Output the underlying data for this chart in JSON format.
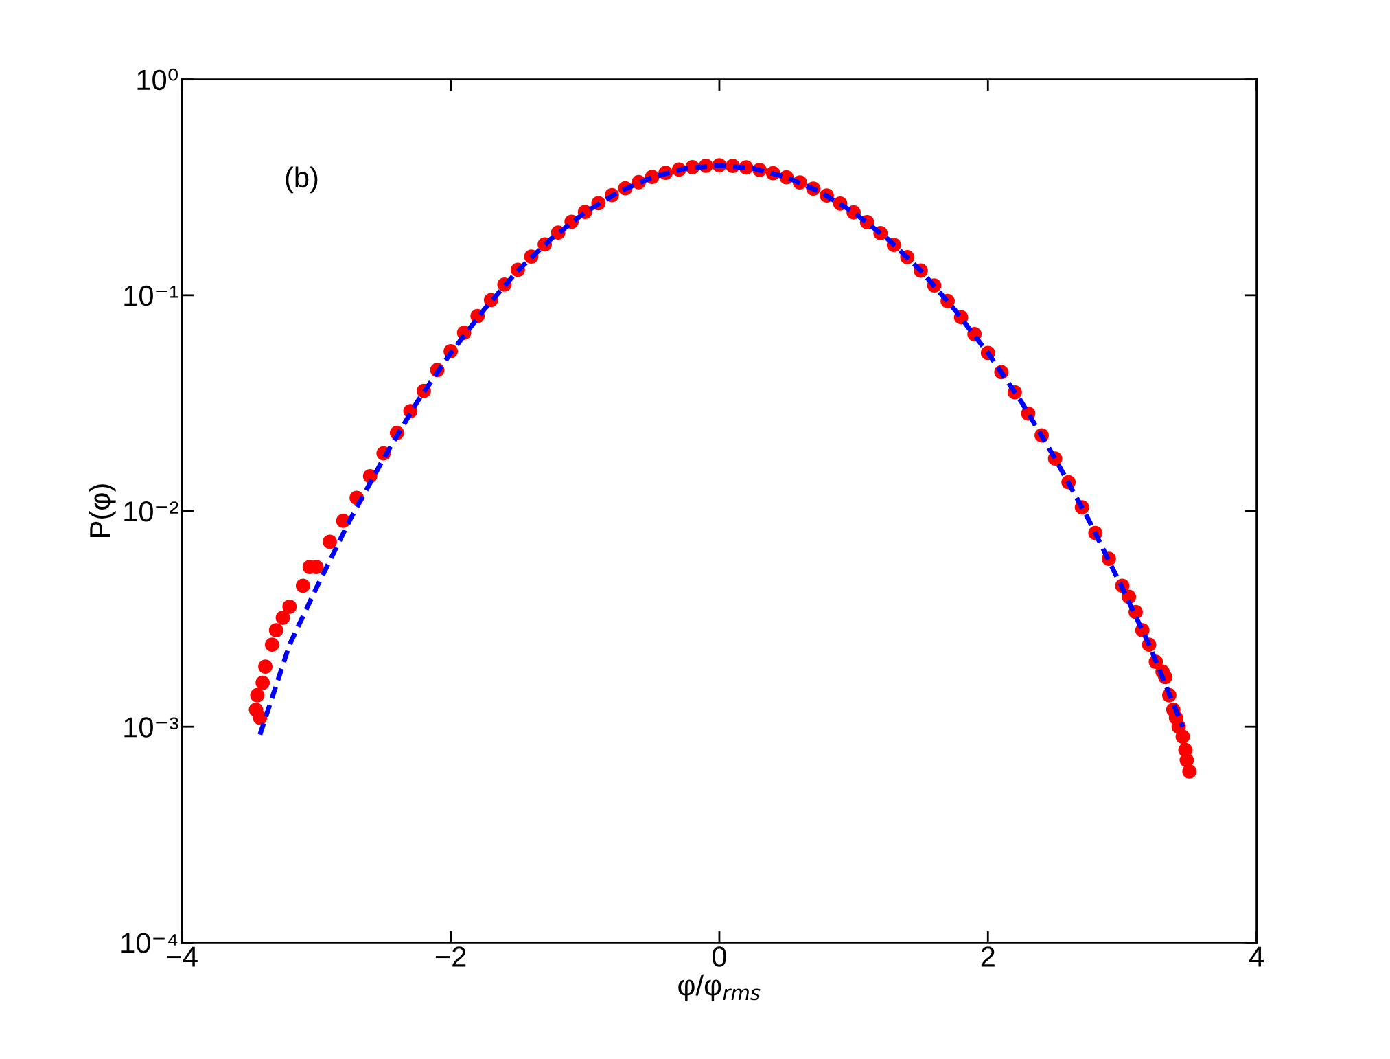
{
  "chart_data": {
    "type": "scatter",
    "xlabel": "φ/φ$_{rms}$",
    "ylabel": "P(φ)",
    "annotations": [
      "(b)"
    ],
    "log": "y",
    "grid": false,
    "xlim": [
      -4,
      4
    ],
    "xticks": [
      {
        "value": -4,
        "label": "−4"
      },
      {
        "value": -2,
        "label": "−2"
      },
      0,
      2,
      4
    ],
    "ylim": [
      0.0001,
      1
    ],
    "yticks": [
      {
        "value": 0.0001,
        "label": "10⁻⁴"
      },
      {
        "value": 0.001,
        "label": "10⁻³"
      },
      {
        "value": 0.01,
        "label": "10⁻²"
      },
      {
        "value": 0.1,
        "label": "10⁻¹"
      },
      {
        "value": 1,
        "label": "10⁰"
      }
    ],
    "series": [
      {
        "marker": "circle",
        "color": "#ff0000",
        "x": [
          -3.45,
          -3.44,
          -3.42,
          -3.4,
          -3.38,
          -3.33,
          -3.3,
          -3.25,
          -3.2,
          -3.1,
          -3.05,
          -3.0,
          -2.9,
          -2.8,
          -2.7,
          -2.6,
          -2.5,
          -2.4,
          -2.3,
          -2.2,
          -2.1,
          -2.0,
          -1.9,
          -1.8,
          -1.7,
          -1.6,
          -1.5,
          -1.4,
          -1.3,
          -1.2,
          -1.1,
          -1.0,
          -0.9,
          -0.8,
          -0.7,
          -0.6,
          -0.5,
          -0.4,
          -0.3,
          -0.2,
          -0.1,
          0.0,
          0.1,
          0.2,
          0.3,
          0.4,
          0.5,
          0.6,
          0.7,
          0.8,
          0.9,
          1.0,
          1.1,
          1.2,
          1.3,
          1.4,
          1.5,
          1.6,
          1.7,
          1.8,
          1.9,
          2.0,
          2.1,
          2.2,
          2.3,
          2.4,
          2.5,
          2.6,
          2.7,
          2.8,
          2.9,
          3.0,
          3.05,
          3.1,
          3.15,
          3.2,
          3.25,
          3.3,
          3.32,
          3.35,
          3.38,
          3.4,
          3.42,
          3.45,
          3.47,
          3.48,
          3.5
        ],
        "values": [
          0.0012,
          0.0014,
          0.0011,
          0.0016,
          0.0019,
          0.0024,
          0.0028,
          0.0032,
          0.0036,
          0.0045,
          0.0055,
          0.0055,
          0.0072,
          0.009,
          0.0115,
          0.0145,
          0.0185,
          0.023,
          0.029,
          0.036,
          0.045,
          0.055,
          0.067,
          0.08,
          0.095,
          0.112,
          0.131,
          0.151,
          0.172,
          0.195,
          0.219,
          0.243,
          0.267,
          0.291,
          0.313,
          0.334,
          0.353,
          0.369,
          0.382,
          0.392,
          0.398,
          0.4,
          0.397,
          0.391,
          0.381,
          0.368,
          0.352,
          0.333,
          0.312,
          0.29,
          0.266,
          0.242,
          0.218,
          0.194,
          0.171,
          0.15,
          0.13,
          0.111,
          0.094,
          0.079,
          0.066,
          0.054,
          0.044,
          0.0355,
          0.0283,
          0.0224,
          0.0175,
          0.0136,
          0.0104,
          0.0079,
          0.006,
          0.0045,
          0.004,
          0.0034,
          0.0028,
          0.0024,
          0.002,
          0.0018,
          0.0017,
          0.0014,
          0.0012,
          0.0011,
          0.001,
          0.0009,
          0.00078,
          0.0007,
          0.00062
        ]
      },
      {
        "type": "line",
        "line_style": "dashed",
        "marker": "none",
        "color": "#0000ff",
        "x": [
          -3.42,
          -3.2,
          -3.0,
          -2.75,
          -2.5,
          -2.25,
          -2.0,
          -1.75,
          -1.5,
          -1.25,
          -1.0,
          -0.75,
          -0.5,
          -0.25,
          0.0,
          0.25,
          0.5,
          0.75,
          1.0,
          1.25,
          1.5,
          1.75,
          2.0,
          2.25,
          2.5,
          2.75,
          3.0,
          3.2,
          3.45
        ],
        "values": [
          0.00092,
          0.0024,
          0.0044,
          0.0091,
          0.0175,
          0.032,
          0.054,
          0.086,
          0.13,
          0.183,
          0.242,
          0.301,
          0.352,
          0.387,
          0.399,
          0.387,
          0.352,
          0.301,
          0.242,
          0.183,
          0.13,
          0.086,
          0.054,
          0.032,
          0.0175,
          0.0091,
          0.0044,
          0.0024,
          0.001
        ]
      }
    ]
  }
}
